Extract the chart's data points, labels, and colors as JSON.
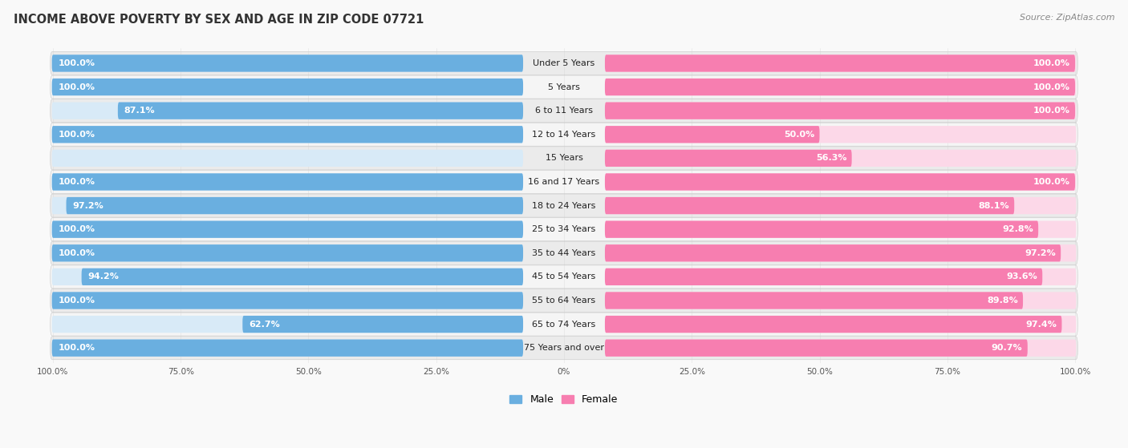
{
  "title": "INCOME ABOVE POVERTY BY SEX AND AGE IN ZIP CODE 07721",
  "source": "Source: ZipAtlas.com",
  "categories": [
    "Under 5 Years",
    "5 Years",
    "6 to 11 Years",
    "12 to 14 Years",
    "15 Years",
    "16 and 17 Years",
    "18 to 24 Years",
    "25 to 34 Years",
    "35 to 44 Years",
    "45 to 54 Years",
    "55 to 64 Years",
    "65 to 74 Years",
    "75 Years and over"
  ],
  "male_values": [
    100.0,
    100.0,
    87.1,
    100.0,
    0.0,
    100.0,
    97.2,
    100.0,
    100.0,
    94.2,
    100.0,
    62.7,
    100.0
  ],
  "female_values": [
    100.0,
    100.0,
    100.0,
    50.0,
    56.3,
    100.0,
    88.1,
    92.8,
    97.2,
    93.6,
    89.8,
    97.4,
    90.7
  ],
  "male_color": "#6aafe0",
  "female_color": "#f77eb0",
  "male_bg_color": "#d8eaf7",
  "female_bg_color": "#fcd8e8",
  "male_label": "Male",
  "female_label": "Female",
  "row_bg_color": "#efefef",
  "row_bg_alt_color": "#e0e0e0",
  "background_color": "#f9f9f9",
  "title_fontsize": 10.5,
  "label_fontsize": 8,
  "source_fontsize": 8,
  "value_fontsize": 8,
  "tick_fontsize": 7.5,
  "legend_fontsize": 9
}
